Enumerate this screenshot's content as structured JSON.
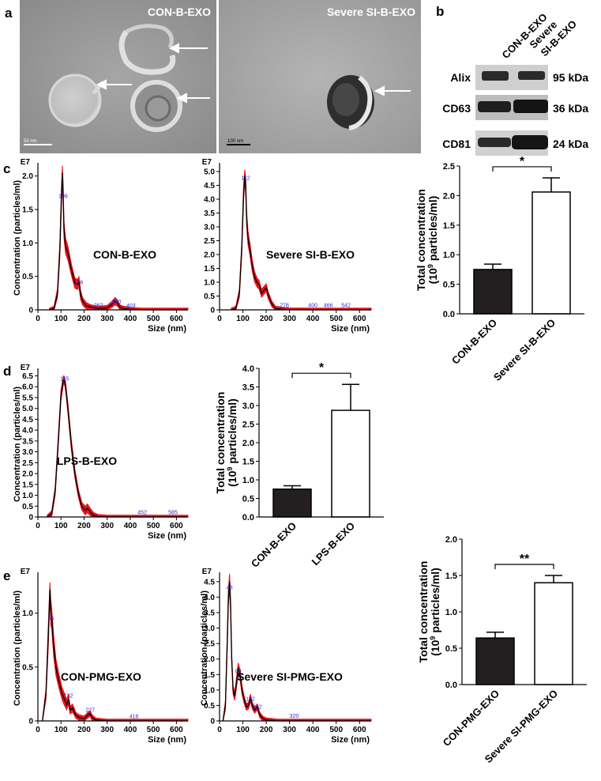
{
  "panels": {
    "a": {
      "letter": "a",
      "images": [
        {
          "label": "CON-B-EXO",
          "scalebar": "50 nm"
        },
        {
          "label": "Severe SI-B-EXO",
          "scalebar": "100 nm"
        }
      ]
    },
    "b": {
      "letter": "b",
      "lanes": [
        "CON-B-EXO",
        "Severe SI-B-EXO"
      ],
      "lane_label_lines": [
        [
          "CON-B-EXO"
        ],
        [
          "Severe",
          "SI-B-EXO"
        ]
      ],
      "bands": [
        {
          "protein": "Alix",
          "size": "95 kDa"
        },
        {
          "protein": "CD63",
          "size": "36 kDa"
        },
        {
          "protein": "CD81",
          "size": "24 kDa"
        }
      ]
    },
    "c": {
      "letter": "c"
    },
    "d": {
      "letter": "d"
    },
    "e": {
      "letter": "e"
    }
  },
  "colors": {
    "band": "#1a1a1a",
    "curve_fill": "#e8141c",
    "curve_line": "#000000",
    "peak_label": "#2a2ad6",
    "bar_dark": "#231f20",
    "bar_light": "#ffffff"
  },
  "chart_data": [
    {
      "id": "c-left",
      "type": "line",
      "annotation": "CON-B-EXO",
      "exponent_label": "E7",
      "xlabel": "Size (nm)",
      "ylabel": "Concentration (particles/ml)",
      "xlim": [
        0,
        650
      ],
      "ylim": [
        0,
        2.15
      ],
      "xticks": [
        0,
        100,
        200,
        300,
        400,
        500,
        600
      ],
      "yticks": [
        0,
        0.5,
        1.0,
        1.5,
        2.0
      ],
      "ytick_labels": [
        "0",
        "0.5",
        "1.0",
        "1.5",
        "2.0"
      ],
      "peak_labels": [
        {
          "x": 109,
          "y": 1.65,
          "text": "109"
        },
        {
          "x": 176,
          "y": 0.36,
          "text": "176"
        },
        {
          "x": 262,
          "y": 0.02,
          "text": "262"
        },
        {
          "x": 340,
          "y": 0.07,
          "text": "340"
        },
        {
          "x": 403,
          "y": 0.01,
          "text": "403"
        }
      ],
      "x": [
        50,
        70,
        85,
        95,
        102,
        106,
        109,
        113,
        120,
        130,
        145,
        160,
        172,
        178,
        185,
        195,
        210,
        230,
        260,
        300,
        320,
        335,
        345,
        355,
        370,
        400,
        450,
        550,
        650
      ],
      "y": [
        0,
        0.02,
        0.25,
        0.9,
        1.7,
        2.05,
        1.75,
        1.2,
        0.95,
        0.85,
        0.6,
        0.4,
        0.38,
        0.42,
        0.22,
        0.12,
        0.06,
        0.04,
        0.02,
        0.03,
        0.08,
        0.13,
        0.1,
        0.04,
        0.02,
        0.01,
        0,
        0,
        0
      ],
      "spread": [
        0,
        0.01,
        0.04,
        0.08,
        0.1,
        0.08,
        0.12,
        0.1,
        0.09,
        0.08,
        0.06,
        0.05,
        0.05,
        0.05,
        0.04,
        0.03,
        0.02,
        0.01,
        0.01,
        0.01,
        0.02,
        0.03,
        0.02,
        0.01,
        0.01,
        0,
        0,
        0,
        0
      ]
    },
    {
      "id": "c-mid",
      "type": "line",
      "annotation": "Severe SI-B-EXO",
      "exponent_label": "E7",
      "xlabel": "Size (nm)",
      "ylabel": "",
      "xlim": [
        0,
        650
      ],
      "ylim": [
        0,
        5.2
      ],
      "xticks": [
        0,
        100,
        200,
        300,
        400,
        500,
        600
      ],
      "yticks": [
        0,
        0.5,
        1.0,
        1.5,
        2.0,
        2.5,
        3.0,
        3.5,
        4.0,
        4.5,
        5.0
      ],
      "ytick_labels": [
        "0",
        "0.5",
        "1.0",
        "1.5",
        "2.0",
        "2.5",
        "3.0",
        "3.5",
        "4.0",
        "4.5",
        "5.0"
      ],
      "peak_labels": [
        {
          "x": 112,
          "y": 4.65,
          "text": "112"
        },
        {
          "x": 278,
          "y": 0.05,
          "text": "278"
        },
        {
          "x": 400,
          "y": 0.04,
          "text": "400"
        },
        {
          "x": 466,
          "y": 0.04,
          "text": "466"
        },
        {
          "x": 542,
          "y": 0.04,
          "text": "542"
        }
      ],
      "x": [
        50,
        70,
        85,
        95,
        103,
        108,
        112,
        116,
        122,
        130,
        140,
        150,
        160,
        170,
        180,
        190,
        200,
        210,
        225,
        240,
        270,
        300,
        400,
        500,
        650
      ],
      "y": [
        0,
        0.05,
        0.6,
        2.2,
        4.2,
        4.85,
        4.5,
        3.3,
        2.6,
        2.2,
        1.6,
        1.2,
        1.0,
        0.9,
        0.6,
        0.7,
        0.8,
        0.5,
        0.2,
        0.05,
        0.02,
        0.01,
        0,
        0,
        0
      ],
      "spread": [
        0,
        0.02,
        0.08,
        0.15,
        0.2,
        0.15,
        0.25,
        0.2,
        0.18,
        0.16,
        0.14,
        0.12,
        0.1,
        0.1,
        0.08,
        0.08,
        0.08,
        0.06,
        0.04,
        0.02,
        0.01,
        0,
        0,
        0,
        0
      ]
    },
    {
      "id": "c-bar",
      "type": "bar",
      "categories": [
        "CON-B-EXO",
        "Severe SI-B-EXO"
      ],
      "values": [
        0.75,
        2.06
      ],
      "errors": [
        0.09,
        0.24
      ],
      "ylabel_lines": [
        "Total concentration",
        "(10",
        "9",
        " particles/ml)"
      ],
      "ylim": [
        0,
        2.5
      ],
      "yticks": [
        0,
        0.5,
        1.0,
        1.5,
        2.0,
        2.5
      ],
      "ytick_labels": [
        "0.0",
        "0.5",
        "1.0",
        "1.5",
        "2.0",
        "2.5"
      ],
      "significance": "*"
    },
    {
      "id": "d-left",
      "type": "line",
      "annotation": "LPS-B-EXO",
      "exponent_label": "E7",
      "xlabel": "Size (nm)",
      "ylabel": "Concentration (particles/ml)",
      "xlim": [
        0,
        650
      ],
      "ylim": [
        0,
        6.7
      ],
      "xticks": [
        0,
        100,
        200,
        300,
        400,
        500,
        600
      ],
      "yticks": [
        0,
        0.5,
        1.0,
        1.5,
        2.0,
        2.5,
        3.0,
        3.5,
        4.0,
        4.5,
        5.0,
        5.5,
        6.0,
        6.5
      ],
      "ytick_labels": [
        "0",
        "0.5",
        "1.0",
        "1.5",
        "2.0",
        "2.5",
        "3.0",
        "3.5",
        "4.0",
        "4.5",
        "5.0",
        "5.5",
        "6.0",
        "6.5"
      ],
      "peak_labels": [
        {
          "x": 115,
          "y": 6.2,
          "text": "115"
        },
        {
          "x": 452,
          "y": 0.05,
          "text": "452"
        },
        {
          "x": 585,
          "y": 0.05,
          "text": "585"
        }
      ],
      "x": [
        40,
        60,
        75,
        90,
        100,
        110,
        115,
        120,
        130,
        145,
        160,
        175,
        190,
        205,
        215,
        225,
        240,
        260,
        300,
        400,
        650
      ],
      "y": [
        0,
        0.15,
        1.2,
        3.8,
        5.6,
        6.3,
        6.3,
        6.0,
        5.0,
        3.3,
        2.0,
        1.1,
        0.5,
        0.3,
        0.4,
        0.25,
        0.08,
        0.02,
        0,
        0,
        0
      ],
      "spread": [
        0,
        0.05,
        0.1,
        0.15,
        0.15,
        0.12,
        0.1,
        0.12,
        0.15,
        0.15,
        0.12,
        0.1,
        0.1,
        0.12,
        0.12,
        0.1,
        0.05,
        0.02,
        0,
        0,
        0
      ]
    },
    {
      "id": "d-bar",
      "type": "bar",
      "categories": [
        "CON-B-EXO",
        "LPS-B-EXO"
      ],
      "values": [
        0.75,
        2.87
      ],
      "errors": [
        0.09,
        0.7
      ],
      "ylabel_lines": [
        "Total concentration",
        "(10",
        "9",
        " particles/ml)"
      ],
      "ylim": [
        0,
        4.0
      ],
      "yticks": [
        0,
        0.5,
        1.0,
        1.5,
        2.0,
        2.5,
        3.0,
        3.5,
        4.0
      ],
      "ytick_labels": [
        "0.0",
        "0.5",
        "1.0",
        "1.5",
        "2.0",
        "2.5",
        "3.0",
        "3.5",
        "4.0"
      ],
      "significance": "*"
    },
    {
      "id": "e-left",
      "type": "line",
      "annotation": "CON-PMG-EXO",
      "exponent_label": "E7",
      "xlabel": "Size (nm)",
      "ylabel": "Concentration (particles/ml)",
      "xlim": [
        0,
        650
      ],
      "ylim": [
        0,
        1.35
      ],
      "xticks": [
        0,
        100,
        200,
        300,
        400,
        500,
        600
      ],
      "yticks": [
        0,
        0.5,
        1.0
      ],
      "ytick_labels": [
        "0",
        "0.5",
        "1.0"
      ],
      "peak_labels": [
        {
          "x": 56,
          "y": 0.92,
          "text": "56"
        },
        {
          "x": 132,
          "y": 0.2,
          "text": "132"
        },
        {
          "x": 227,
          "y": 0.07,
          "text": "227"
        },
        {
          "x": 416,
          "y": 0.01,
          "text": "416"
        }
      ],
      "x": [
        20,
        35,
        45,
        52,
        56,
        60,
        68,
        78,
        90,
        105,
        115,
        125,
        132,
        140,
        150,
        165,
        180,
        200,
        215,
        225,
        235,
        250,
        300,
        400,
        650
      ],
      "y": [
        0,
        0.25,
        0.8,
        1.22,
        1.0,
        0.95,
        0.7,
        0.5,
        0.38,
        0.25,
        0.2,
        0.15,
        0.2,
        0.1,
        0.12,
        0.05,
        0.03,
        0.02,
        0.05,
        0.07,
        0.03,
        0.01,
        0,
        0,
        0
      ],
      "spread": [
        0,
        0.03,
        0.08,
        0.05,
        0.1,
        0.08,
        0.08,
        0.06,
        0.05,
        0.04,
        0.04,
        0.03,
        0.03,
        0.02,
        0.02,
        0.01,
        0.01,
        0.01,
        0.01,
        0.01,
        0.01,
        0,
        0,
        0,
        0
      ]
    },
    {
      "id": "e-mid",
      "type": "line",
      "annotation": "Severe SI-PMG-EXO",
      "exponent_label": "E7",
      "xlabel": "Size (nm)",
      "ylabel": "Concentration (particles/ml)",
      "xlim": [
        0,
        650
      ],
      "ylim": [
        0,
        4.7
      ],
      "xticks": [
        0,
        100,
        200,
        300,
        400,
        500,
        600
      ],
      "yticks": [
        0,
        0.5,
        1.0,
        1.5,
        2.0,
        2.5,
        3.0,
        3.5,
        4.0,
        4.5
      ],
      "ytick_labels": [
        "0",
        "0.5",
        "1.0",
        "1.5",
        "2.0",
        "2.5",
        "3.0",
        "3.5",
        "4.0",
        "4.5"
      ],
      "peak_labels": [
        {
          "x": 43,
          "y": 4.2,
          "text": "43"
        },
        {
          "x": 80,
          "y": 1.5,
          "text": "80"
        },
        {
          "x": 132,
          "y": 0.6,
          "text": "132"
        },
        {
          "x": 162,
          "y": 0.35,
          "text": "162"
        },
        {
          "x": 320,
          "y": 0.05,
          "text": "320"
        }
      ],
      "x": [
        15,
        25,
        33,
        38,
        43,
        47,
        52,
        58,
        65,
        72,
        80,
        88,
        96,
        105,
        115,
        125,
        132,
        140,
        150,
        162,
        172,
        185,
        200,
        250,
        650
      ],
      "y": [
        0,
        0.5,
        2.5,
        4.0,
        4.5,
        3.8,
        2.0,
        1.0,
        0.8,
        1.2,
        1.7,
        1.5,
        1.0,
        0.7,
        0.45,
        0.5,
        0.75,
        0.5,
        0.35,
        0.45,
        0.2,
        0.08,
        0.03,
        0,
        0
      ],
      "spread": [
        0,
        0.08,
        0.15,
        0.2,
        0.2,
        0.15,
        0.1,
        0.08,
        0.08,
        0.1,
        0.12,
        0.1,
        0.08,
        0.06,
        0.05,
        0.05,
        0.06,
        0.05,
        0.04,
        0.04,
        0.03,
        0.02,
        0.01,
        0,
        0
      ]
    },
    {
      "id": "e-bar",
      "type": "bar",
      "categories": [
        "CON-PMG-EXO",
        "Severe SI-PMG-EXO"
      ],
      "values": [
        0.64,
        1.4
      ],
      "errors": [
        0.08,
        0.1
      ],
      "ylabel_lines": [
        "Total concentration",
        "(10",
        "9",
        " particles/ml)"
      ],
      "ylim": [
        0,
        2.0
      ],
      "yticks": [
        0,
        0.5,
        1.0,
        1.5,
        2.0
      ],
      "ytick_labels": [
        "0.0",
        "0.5",
        "1.0",
        "1.5",
        "2.0"
      ],
      "significance": "**"
    }
  ]
}
